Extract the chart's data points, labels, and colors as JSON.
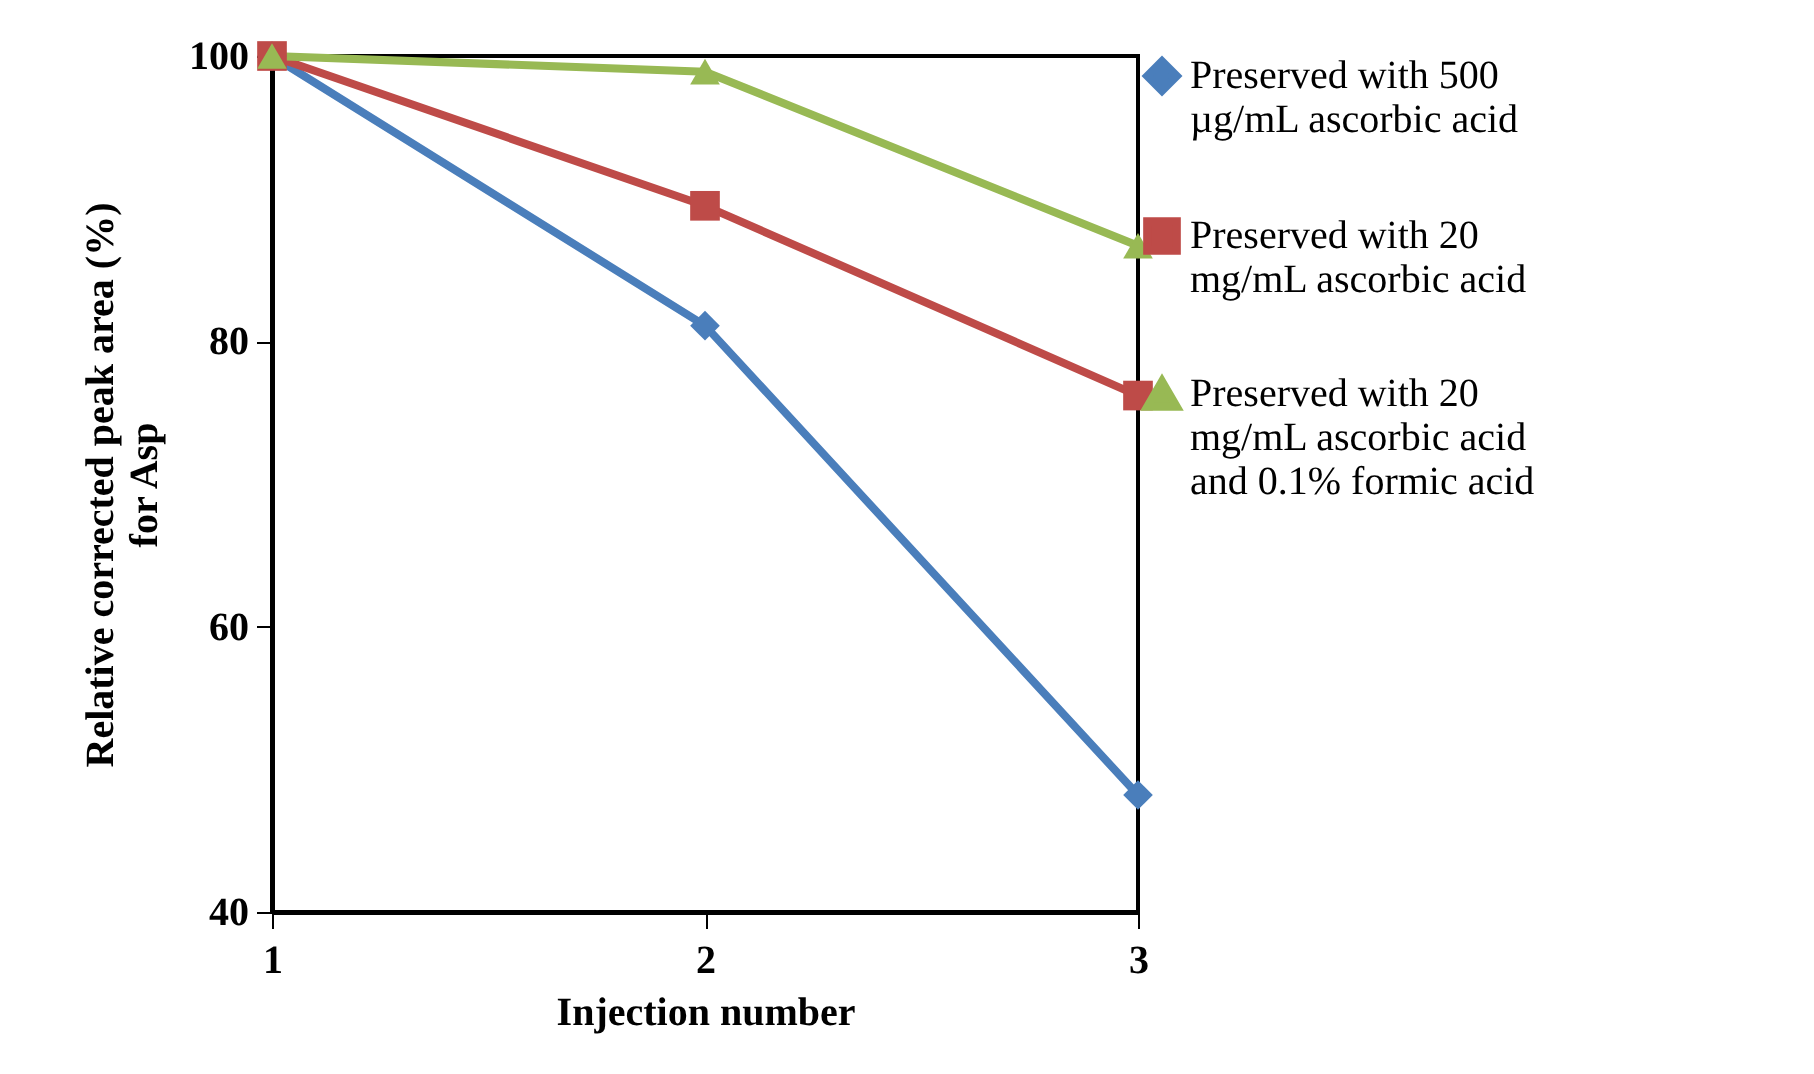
{
  "chart_data": {
    "type": "line",
    "xlabel": "Injection number",
    "ylabel": "Relative corrected peak area (%) for Asp",
    "x": [
      1,
      2,
      3
    ],
    "xlim": [
      1,
      3
    ],
    "xticks": [
      1,
      2,
      3
    ],
    "ylim": [
      40,
      100
    ],
    "yticks": [
      40,
      60,
      80,
      100
    ],
    "grid": false,
    "legend": "right",
    "series": [
      {
        "name": "Preserved with 500 µg/mL ascorbic acid",
        "color": "#4a7ebb",
        "marker": "diamond",
        "values": [
          100,
          81.1,
          48.2
        ]
      },
      {
        "name": "Preserved with 20 mg/mL ascorbic acid",
        "color": "#be4b48",
        "marker": "square",
        "values": [
          100,
          89.5,
          76.2
        ]
      },
      {
        "name": "Preserved with 20 mg/mL ascorbic acid and 0.1% formic acid",
        "color": "#98b954",
        "marker": "triangle",
        "values": [
          100,
          98.9,
          86.7
        ]
      }
    ]
  }
}
